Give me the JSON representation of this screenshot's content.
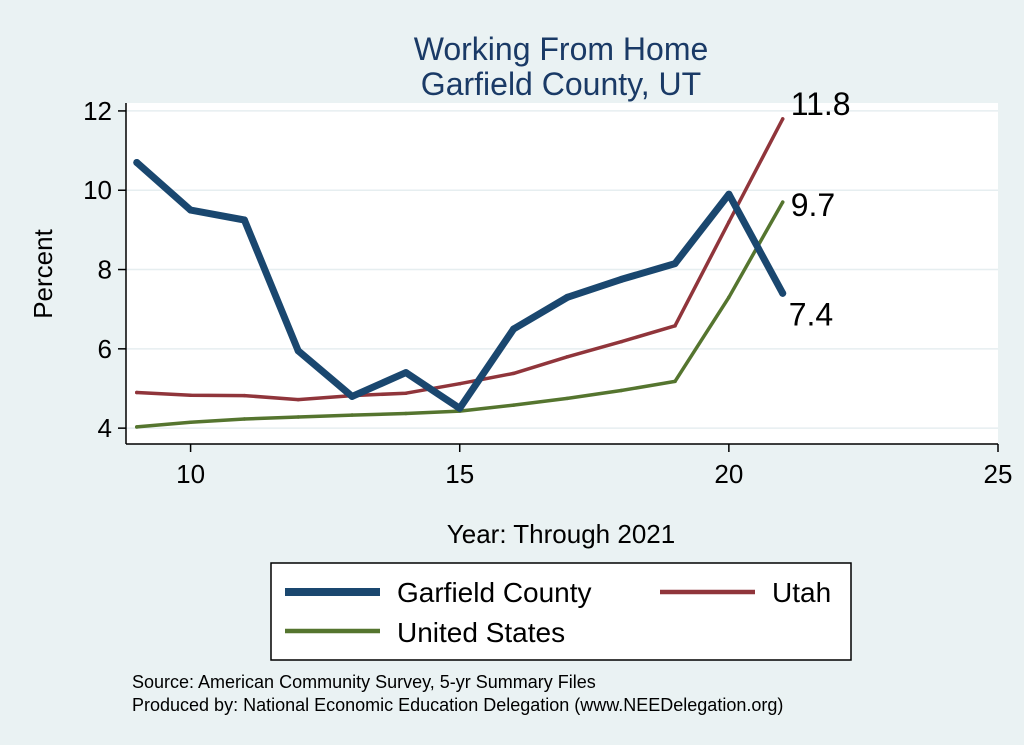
{
  "chart_data": {
    "type": "line",
    "title": [
      "Working From Home",
      "Garfield County, UT"
    ],
    "xlabel": "Year: Through 2021",
    "ylabel": "Percent",
    "xlim": [
      8.8,
      25
    ],
    "ylim": [
      3.6,
      12.2
    ],
    "xticks": [
      10,
      15,
      20,
      25
    ],
    "yticks": [
      4,
      6,
      8,
      10,
      12
    ],
    "grid": "horizontal",
    "legend_position": "bottom",
    "series": [
      {
        "name": "Garfield County",
        "color": "#1a476f",
        "x": [
          9,
          10,
          11,
          12,
          13,
          14,
          15,
          16,
          17,
          18,
          19,
          20,
          21
        ],
        "values": [
          10.7,
          9.5,
          9.25,
          5.95,
          4.8,
          5.4,
          4.5,
          6.5,
          7.3,
          7.75,
          8.15,
          9.9,
          7.4
        ],
        "end_label": "7.4"
      },
      {
        "name": "Utah",
        "color": "#90353b",
        "x": [
          9,
          10,
          11,
          12,
          13,
          14,
          15,
          16,
          17,
          18,
          19,
          20,
          21
        ],
        "values": [
          4.9,
          4.83,
          4.82,
          4.72,
          4.82,
          4.88,
          5.12,
          5.38,
          5.8,
          6.18,
          6.58,
          9.2,
          11.8
        ],
        "end_label": "11.8"
      },
      {
        "name": "United States",
        "color": "#55752f",
        "x": [
          9,
          10,
          11,
          12,
          13,
          14,
          15,
          16,
          17,
          18,
          19,
          20,
          21
        ],
        "values": [
          4.03,
          4.15,
          4.23,
          4.28,
          4.33,
          4.37,
          4.43,
          4.58,
          4.75,
          4.95,
          5.18,
          7.3,
          9.7
        ],
        "end_label": "9.7"
      }
    ],
    "notes": [
      "Source: American Community Survey, 5-yr Summary Files",
      "Produced by: National Economic Education Delegation (www.NEEDelegation.org)"
    ]
  }
}
